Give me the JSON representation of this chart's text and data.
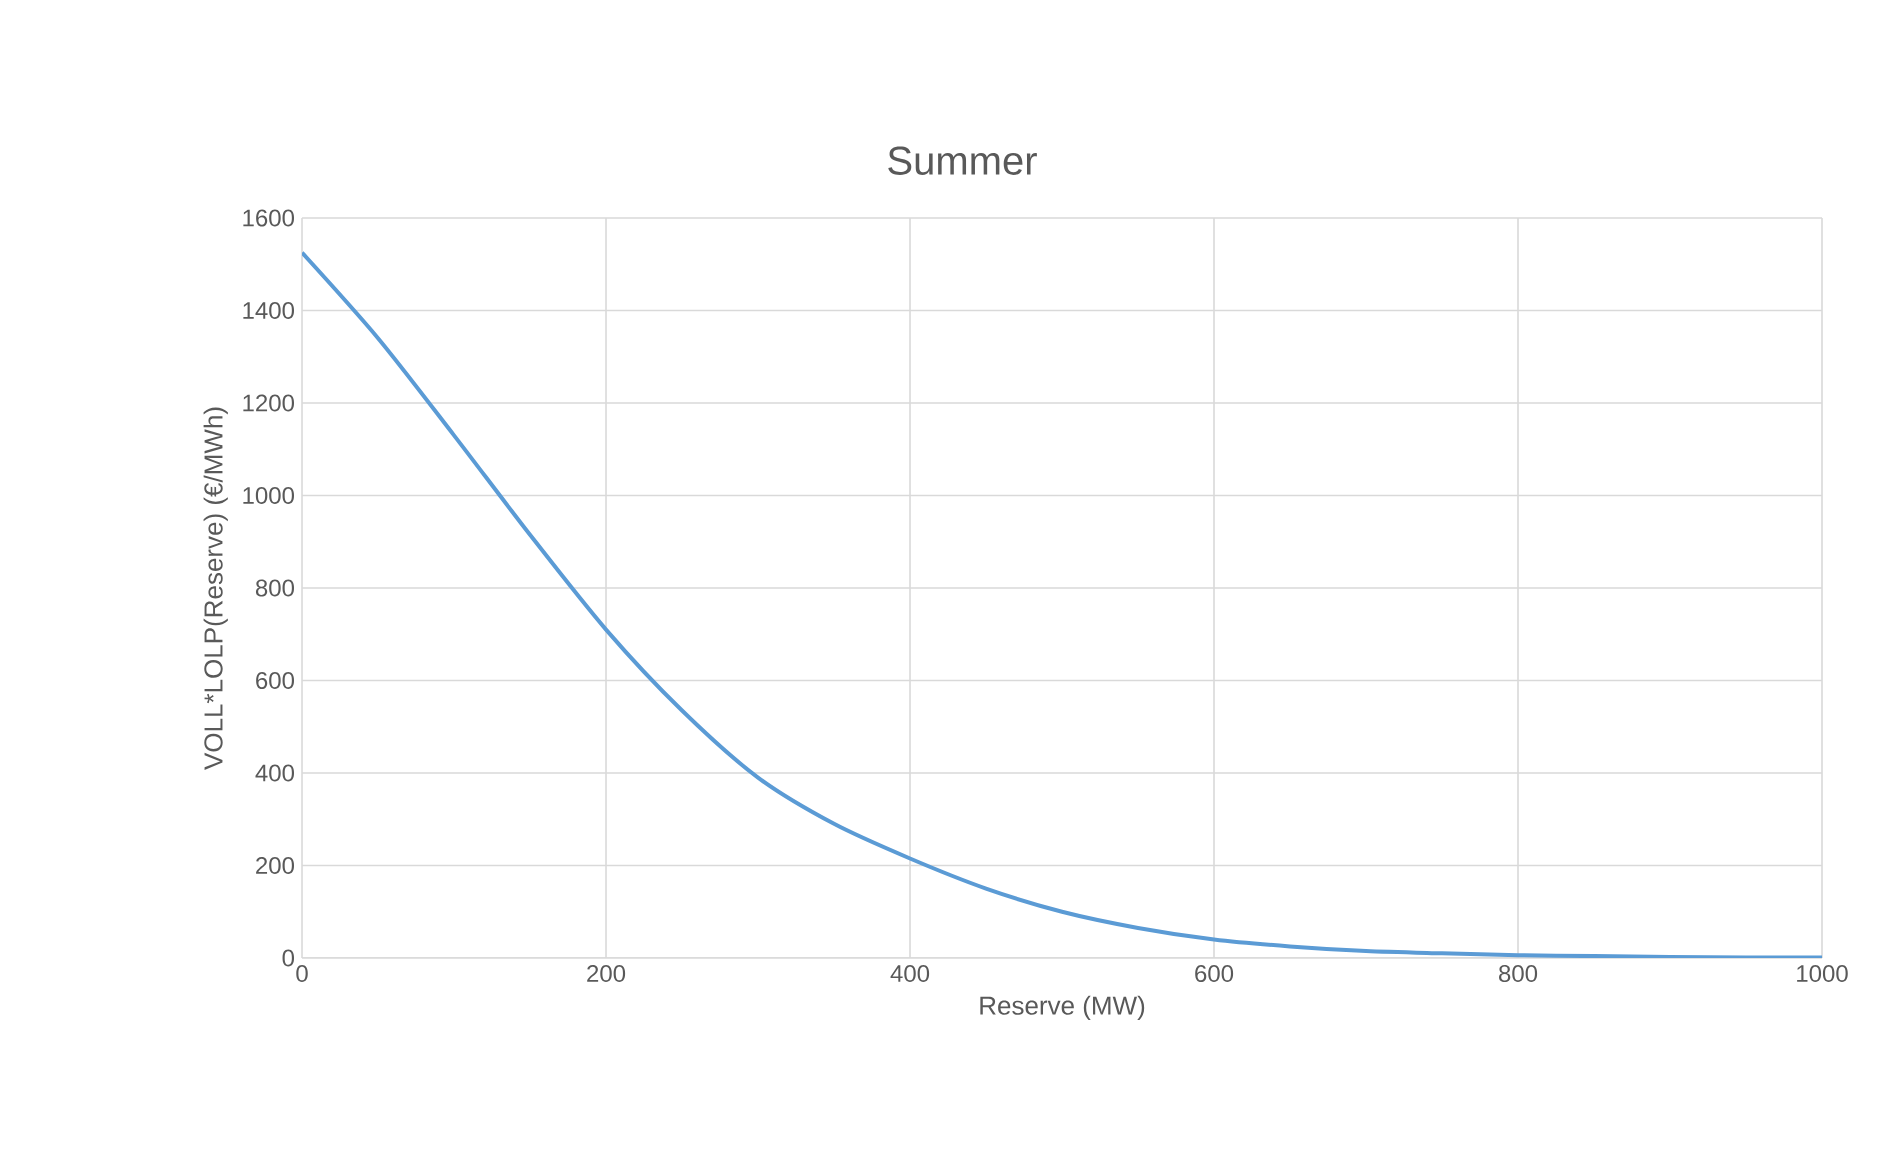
{
  "chart_data": {
    "type": "line",
    "title": "Summer",
    "xlabel": "Reserve (MW)",
    "ylabel": "VOLL*LOLP(Reserve) (€/MWh)",
    "x": [
      0,
      50,
      100,
      150,
      200,
      250,
      300,
      350,
      400,
      450,
      500,
      550,
      600,
      650,
      700,
      750,
      800,
      850,
      900,
      950,
      1000
    ],
    "series": [
      {
        "color": "#5b9bd5",
        "values": [
          1525,
          1340,
          1130,
          915,
          710,
          535,
          390,
          290,
          215,
          150,
          100,
          65,
          40,
          25,
          15,
          10,
          6,
          4,
          2,
          1,
          1
        ]
      }
    ],
    "xlim": [
      0,
      1000
    ],
    "xticks": [
      0,
      200,
      400,
      600,
      800,
      1000
    ],
    "ylim": [
      0,
      1600
    ],
    "yticks": [
      0,
      200,
      400,
      600,
      800,
      1000,
      1200,
      1400,
      1600
    ],
    "grid": true,
    "marker": "none",
    "line_style": "solid"
  }
}
